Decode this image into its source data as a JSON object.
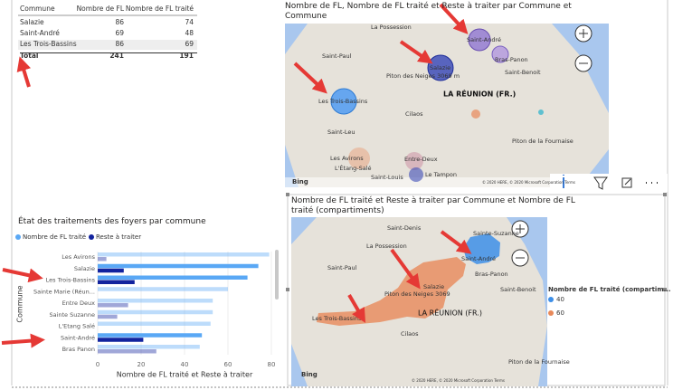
{
  "table": {
    "columns": [
      "Commune",
      "Nombre de FL",
      "Nombre de FL traité"
    ],
    "rows": [
      [
        "Salazie",
        86,
        74
      ],
      [
        "Saint-André",
        69,
        48
      ],
      [
        "Les Trois-Bassins",
        86,
        69
      ]
    ],
    "total": [
      "Total",
      241,
      191
    ]
  },
  "bubble_map": {
    "title": "Nombre de FL, Nombre de FL traité et Reste à traiter par Commune et Commune",
    "places": [
      "La Possession",
      "Saint-André",
      "Saint-Paul",
      "Salazie",
      "Bras-Panon",
      "Piton des Neiges 3069 m",
      "Saint-Benoit",
      "LA RÉUNION (FR.)",
      "Les Trois-Bassins",
      "Cilaos",
      "Saint-Leu",
      "Piton de la Fournaise",
      "Les Avirons",
      "Entre-Deux",
      "L'Étang-Salé",
      "Saint-Louis",
      "Le Tampon"
    ],
    "attribution": "Bing",
    "copyright": "© 2020 HERE, © 2020 Microsoft Corporation Terms"
  },
  "bar_chart": {
    "type": "bar",
    "orientation": "horizontal",
    "title": "État des traitements des foyers par commune",
    "x_label": "Nombre de FL traité et Reste à traiter",
    "y_label": "Commune",
    "categories": [
      "Les Avirons",
      "Salazie",
      "Les Trois-Bassins",
      "Sainte Marie (Réun...",
      "Entre Deux",
      "Sainte Suzanne",
      "L'Etang Salé",
      "Saint-André",
      "Bras Panon"
    ],
    "highlight": [
      false,
      true,
      true,
      false,
      false,
      false,
      false,
      true,
      false
    ],
    "series": [
      {
        "name": "Nombre de FL traité",
        "color": "#5aa8f5",
        "values": [
          79,
          74,
          69,
          60,
          53,
          53,
          52,
          48,
          47
        ]
      },
      {
        "name": "Reste à traiter",
        "color": "#12239e",
        "values": [
          4,
          12,
          17,
          null,
          14,
          9,
          null,
          21,
          27
        ]
      }
    ],
    "xlim": [
      0,
      80
    ],
    "xticks": [
      0,
      20,
      40,
      60,
      80
    ]
  },
  "filled_map": {
    "title": "Nombre de FL traité et Reste à traiter par Commune et Nombre de FL traité (compartiments)",
    "legend_title": "Nombre de FL traité (compartim...",
    "legend": [
      {
        "value": 40,
        "color": "#3d8fe8"
      },
      {
        "value": 60,
        "color": "#e8895a"
      }
    ],
    "places": [
      "Saint-Denis",
      "Sainte-Suzanne",
      "La Possession",
      "Saint-André",
      "Saint-Paul",
      "Bras-Panon",
      "Salazie",
      "Piton des Neiges 3069",
      "Saint-Benoit",
      "LA RÉUNION (FR.)",
      "Les Trois-Bassins",
      "Cilaos",
      "Piton de la Fournaise"
    ],
    "attribution": "Bing",
    "copyright": "© 2020 HERE, © 2020 Microsoft Corporation Terms"
  }
}
